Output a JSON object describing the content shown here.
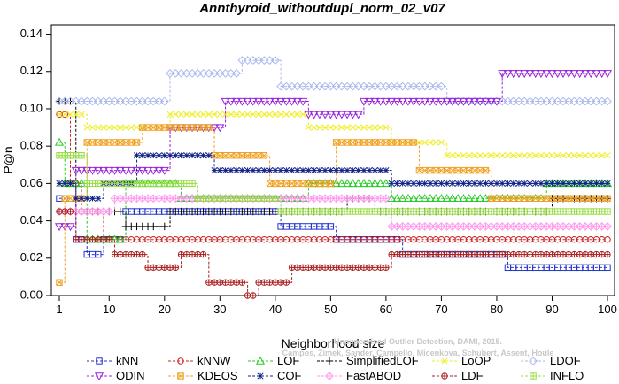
{
  "chart_data": {
    "type": "line",
    "title": "Annthyroid_withoutdupl_norm_02_v07",
    "xlabel": "Neighborhood size",
    "ylabel": "P@n",
    "xlim": [
      1,
      100
    ],
    "ylim": [
      0,
      0.145
    ],
    "xticks": [
      1,
      10,
      20,
      30,
      40,
      50,
      60,
      70,
      80,
      90,
      100
    ],
    "yticks": [
      "0.00",
      "0.02",
      "0.04",
      "0.06",
      "0.08",
      "0.10",
      "0.12",
      "0.14"
    ],
    "watermark": [
      "Unsupervised Outlier Detection, DAMI, 2015.",
      "Campos, Zimek, Sander, Campello, Micenkova, Schubert, Assent, Houle"
    ],
    "legend_position": "bottom",
    "series": [
      {
        "name": "kNN",
        "color": "#2233cc",
        "marker": "square",
        "segments": [
          [
            1,
            3,
            0.052
          ],
          [
            4,
            5,
            0.03
          ],
          [
            6,
            8,
            0.022
          ],
          [
            9,
            12,
            0.03
          ],
          [
            13,
            40,
            0.045
          ],
          [
            41,
            50,
            0.037
          ],
          [
            51,
            62,
            0.03
          ],
          [
            63,
            81,
            0.022
          ],
          [
            82,
            100,
            0.015
          ]
        ]
      },
      {
        "name": "kNNW",
        "color": "#cc2222",
        "marker": "circle",
        "segments": [
          [
            1,
            2,
            0.097
          ],
          [
            3,
            4,
            0.06
          ],
          [
            5,
            8,
            0.045
          ],
          [
            9,
            14,
            0.03
          ],
          [
            15,
            100,
            0.03
          ]
        ]
      },
      {
        "name": "LOF",
        "color": "#22cc22",
        "marker": "triangle-up",
        "segments": [
          [
            1,
            1,
            0.082
          ],
          [
            2,
            5,
            0.06
          ],
          [
            6,
            12,
            0.03
          ],
          [
            13,
            22,
            0.06
          ],
          [
            23,
            45,
            0.052
          ],
          [
            46,
            60,
            0.06
          ],
          [
            61,
            88,
            0.052
          ],
          [
            89,
            100,
            0.06
          ]
        ]
      },
      {
        "name": "SimplifiedLOF",
        "color": "#000000",
        "marker": "plus",
        "segments": [
          [
            1,
            3,
            0.104
          ],
          [
            4,
            12,
            0.045
          ],
          [
            13,
            20,
            0.037
          ],
          [
            21,
            32,
            0.045
          ],
          [
            33,
            52,
            0.045
          ],
          [
            53,
            57,
            0.052
          ],
          [
            58,
            89,
            0.045
          ],
          [
            90,
            100,
            0.052
          ]
        ]
      },
      {
        "name": "LoOP",
        "color": "#eeee22",
        "marker": "cross",
        "segments": [
          [
            1,
            5,
            0.097
          ],
          [
            6,
            20,
            0.09
          ],
          [
            21,
            45,
            0.097
          ],
          [
            46,
            60,
            0.09
          ],
          [
            61,
            70,
            0.082
          ],
          [
            71,
            80,
            0.075
          ],
          [
            81,
            100,
            0.075
          ]
        ]
      },
      {
        "name": "LDOF",
        "color": "#aab8ee",
        "marker": "diamond",
        "segments": [
          [
            1,
            20,
            0.104
          ],
          [
            21,
            33,
            0.119
          ],
          [
            34,
            40,
            0.126
          ],
          [
            41,
            50,
            0.112
          ],
          [
            51,
            70,
            0.112
          ],
          [
            71,
            100,
            0.104
          ]
        ]
      },
      {
        "name": "ODIN",
        "color": "#9922dd",
        "marker": "triangle-down",
        "segments": [
          [
            1,
            3,
            0.037
          ],
          [
            4,
            20,
            0.067
          ],
          [
            21,
            30,
            0.09
          ],
          [
            31,
            38,
            0.104
          ],
          [
            39,
            45,
            0.104
          ],
          [
            46,
            55,
            0.097
          ],
          [
            56,
            80,
            0.104
          ],
          [
            81,
            100,
            0.119
          ]
        ]
      },
      {
        "name": "KDEOS",
        "color": "#f0a020",
        "marker": "square-x",
        "segments": [
          [
            1,
            1,
            0.007
          ],
          [
            2,
            5,
            0.052
          ],
          [
            6,
            15,
            0.082
          ],
          [
            16,
            28,
            0.09
          ],
          [
            29,
            38,
            0.075
          ],
          [
            39,
            50,
            0.06
          ],
          [
            51,
            65,
            0.082
          ],
          [
            66,
            78,
            0.067
          ],
          [
            79,
            100,
            0.052
          ]
        ]
      },
      {
        "name": "COF",
        "color": "#112288",
        "marker": "asterisk",
        "segments": [
          [
            1,
            3,
            0.06
          ],
          [
            4,
            8,
            0.052
          ],
          [
            9,
            14,
            0.06
          ],
          [
            15,
            28,
            0.075
          ],
          [
            29,
            42,
            0.067
          ],
          [
            43,
            60,
            0.067
          ],
          [
            61,
            75,
            0.06
          ],
          [
            76,
            100,
            0.06
          ]
        ]
      },
      {
        "name": "FastABOD",
        "color": "#ff99ee",
        "marker": "diamond-plus",
        "segments": [
          [
            1,
            10,
            0.045
          ],
          [
            11,
            40,
            0.052
          ],
          [
            41,
            60,
            0.052
          ],
          [
            61,
            100,
            0.037
          ]
        ]
      },
      {
        "name": "LDF",
        "color": "#aa2222",
        "marker": "circle-plus",
        "segments": [
          [
            1,
            3,
            0.045
          ],
          [
            4,
            10,
            0.03
          ],
          [
            11,
            16,
            0.022
          ],
          [
            17,
            22,
            0.015
          ],
          [
            23,
            27,
            0.022
          ],
          [
            28,
            34,
            0.007
          ],
          [
            35,
            36,
            0.0
          ],
          [
            37,
            42,
            0.007
          ],
          [
            43,
            60,
            0.015
          ],
          [
            61,
            100,
            0.022
          ]
        ]
      },
      {
        "name": "INFLO",
        "color": "#99dd44",
        "marker": "square-cross",
        "segments": [
          [
            1,
            5,
            0.075
          ],
          [
            6,
            15,
            0.06
          ],
          [
            16,
            25,
            0.06
          ],
          [
            26,
            40,
            0.052
          ],
          [
            41,
            70,
            0.045
          ],
          [
            71,
            100,
            0.045
          ]
        ]
      }
    ]
  }
}
